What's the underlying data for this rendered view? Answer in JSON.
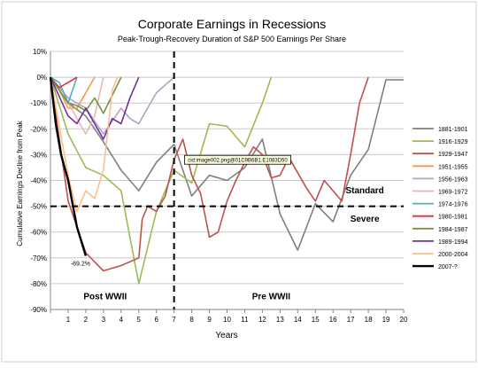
{
  "chart_data": {
    "type": "line",
    "title": "Corporate Earnings in Recessions",
    "subtitle": "Peak-Trough-Recovery Duration of S&P 500 Earnings Per Share",
    "xlabel": "Years",
    "ylabel": "Cumulative Earnings Decline from Peak",
    "xlim": [
      0,
      20
    ],
    "ylim": [
      -90,
      10
    ],
    "x_ticks": [
      "1",
      "2",
      "3",
      "4",
      "5",
      "6",
      "7",
      "8",
      "9",
      "10",
      "11",
      "12",
      "13",
      "14",
      "15",
      "16",
      "17",
      "18",
      "19",
      "20"
    ],
    "y_ticks": [
      "10%",
      "0%",
      "-10%",
      "-20%",
      "-30%",
      "-40%",
      "-50%",
      "-60%",
      "-70%",
      "-80%",
      "-90%"
    ],
    "y_tick_values": [
      10,
      0,
      -10,
      -20,
      -30,
      -40,
      -50,
      -60,
      -70,
      -80,
      -90
    ],
    "grid": "horizontal",
    "legend_position": "right",
    "series": [
      {
        "name": "1881-1901",
        "color": "#7f7f7f",
        "points": [
          [
            0,
            0
          ],
          [
            1,
            -10
          ],
          [
            2,
            -15
          ],
          [
            3,
            -25
          ],
          [
            4,
            -36
          ],
          [
            5,
            -44
          ],
          [
            6,
            -33
          ],
          [
            7,
            -26
          ],
          [
            8,
            -46
          ],
          [
            9,
            -38
          ],
          [
            10,
            -40
          ],
          [
            11,
            -35
          ],
          [
            12,
            -24
          ],
          [
            13,
            -53
          ],
          [
            14,
            -67
          ],
          [
            15,
            -49
          ],
          [
            16,
            -56
          ],
          [
            17,
            -38
          ],
          [
            18,
            -28
          ],
          [
            19,
            -1
          ],
          [
            20,
            -1
          ]
        ]
      },
      {
        "name": "1916-1929",
        "color": "#9bbb59",
        "points": [
          [
            0,
            0
          ],
          [
            1,
            -22
          ],
          [
            2,
            -35
          ],
          [
            3,
            -38
          ],
          [
            4,
            -44
          ],
          [
            5,
            -80
          ],
          [
            6,
            -52
          ],
          [
            7,
            -36
          ],
          [
            8,
            -41
          ],
          [
            9,
            -18
          ],
          [
            10,
            -19
          ],
          [
            11,
            -27
          ],
          [
            12,
            -10
          ],
          [
            12.5,
            0
          ]
        ]
      },
      {
        "name": "1929-1947",
        "color": "#c0504d",
        "points": [
          [
            0,
            0
          ],
          [
            1,
            -48
          ],
          [
            2,
            -68
          ],
          [
            3,
            -75
          ],
          [
            4,
            -73
          ],
          [
            5,
            -70
          ],
          [
            5.2,
            -55
          ],
          [
            5.5,
            -50
          ],
          [
            6,
            -52
          ],
          [
            6.5,
            -46
          ],
          [
            7,
            -32
          ],
          [
            7.5,
            -24
          ],
          [
            8,
            -38
          ],
          [
            8.5,
            -45
          ],
          [
            9,
            -62
          ],
          [
            9.5,
            -60
          ],
          [
            10,
            -48
          ],
          [
            10.5,
            -40
          ],
          [
            11,
            -33
          ],
          [
            11.5,
            -27
          ],
          [
            12,
            -30
          ],
          [
            12.5,
            -39
          ],
          [
            13,
            -38
          ],
          [
            13.5,
            -31
          ],
          [
            14,
            -37
          ],
          [
            14.5,
            -43
          ],
          [
            15,
            -48
          ],
          [
            15.5,
            -40
          ],
          [
            16,
            -44
          ],
          [
            16.5,
            -48
          ],
          [
            17,
            -30
          ],
          [
            17.5,
            -10
          ],
          [
            18,
            0
          ]
        ]
      },
      {
        "name": "1951-1955",
        "color": "#f79646",
        "points": [
          [
            0,
            0
          ],
          [
            0.5,
            -5
          ],
          [
            1,
            -12
          ],
          [
            1.5,
            -12
          ],
          [
            2,
            -6
          ],
          [
            2.5,
            0
          ]
        ]
      },
      {
        "name": "1956-1963",
        "color": "#b3a2c7",
        "points": [
          [
            0,
            0
          ],
          [
            1,
            -8
          ],
          [
            2,
            -12
          ],
          [
            3,
            -22
          ],
          [
            4,
            -12
          ],
          [
            4.5,
            -16
          ],
          [
            5,
            -18
          ],
          [
            5.5,
            -12
          ],
          [
            6,
            -6
          ],
          [
            6.5,
            -3
          ],
          [
            7,
            0
          ]
        ]
      },
      {
        "name": "1969-1972",
        "color": "#e6b9b8",
        "points": [
          [
            0,
            0
          ],
          [
            1,
            -10
          ],
          [
            2,
            -22
          ],
          [
            2.5,
            -15
          ],
          [
            3,
            0
          ]
        ]
      },
      {
        "name": "1974-1976",
        "color": "#4bacc6",
        "points": [
          [
            0,
            0
          ],
          [
            0.5,
            -2
          ],
          [
            1,
            -10
          ],
          [
            1.5,
            0
          ]
        ]
      },
      {
        "name": "1980-1981",
        "color": "#e0303c",
        "points": [
          [
            0,
            0
          ],
          [
            0.5,
            -4
          ],
          [
            1,
            -2
          ],
          [
            1.5,
            0
          ]
        ]
      },
      {
        "name": "1984-1987",
        "color": "#77933c",
        "points": [
          [
            0,
            0
          ],
          [
            1,
            -10
          ],
          [
            1.5,
            -11
          ],
          [
            2,
            -13
          ],
          [
            2.5,
            -8
          ],
          [
            3,
            -14
          ],
          [
            3.5,
            -7
          ],
          [
            4,
            0
          ]
        ]
      },
      {
        "name": "1989-1994",
        "color": "#7030a0",
        "points": [
          [
            0,
            0
          ],
          [
            1,
            -15
          ],
          [
            1.5,
            -18
          ],
          [
            2,
            -12
          ],
          [
            2.5,
            -18
          ],
          [
            3,
            -24
          ],
          [
            3.5,
            -16
          ],
          [
            4,
            -18
          ],
          [
            4.5,
            -8
          ],
          [
            5,
            0
          ]
        ]
      },
      {
        "name": "2000-2004",
        "color": "#fac090",
        "points": [
          [
            0,
            0
          ],
          [
            1,
            -38
          ],
          [
            1.5,
            -52
          ],
          [
            2,
            -44
          ],
          [
            2.5,
            -47
          ],
          [
            3,
            -36
          ],
          [
            3.5,
            -5
          ],
          [
            3.8,
            0
          ]
        ]
      },
      {
        "name": "2007-?",
        "color": "#000000",
        "points": [
          [
            0,
            0
          ],
          [
            0.3,
            -18
          ],
          [
            0.6,
            -30
          ],
          [
            1,
            -40
          ],
          [
            1.5,
            -58
          ],
          [
            2,
            -69.2
          ]
        ]
      }
    ],
    "annotations": [
      {
        "text": "-69.2%",
        "x": 1.7,
        "y": -72
      },
      {
        "text": "Standard",
        "x": 17.8,
        "y": -44
      },
      {
        "text": "Severe",
        "x": 17.8,
        "y": -55
      },
      {
        "text": "Post WWII",
        "x": 3.1,
        "y": -85
      },
      {
        "text": "Pre WWII",
        "x": 12.5,
        "y": -85
      },
      {
        "text": "cid:image002.png@01C9B6B1.E1083D50",
        "x": 10.6,
        "y": -32
      }
    ],
    "reference_lines": [
      {
        "orientation": "horizontal",
        "value": -50,
        "style": "dashed"
      },
      {
        "orientation": "vertical",
        "value": 7,
        "style": "dashed"
      }
    ]
  }
}
